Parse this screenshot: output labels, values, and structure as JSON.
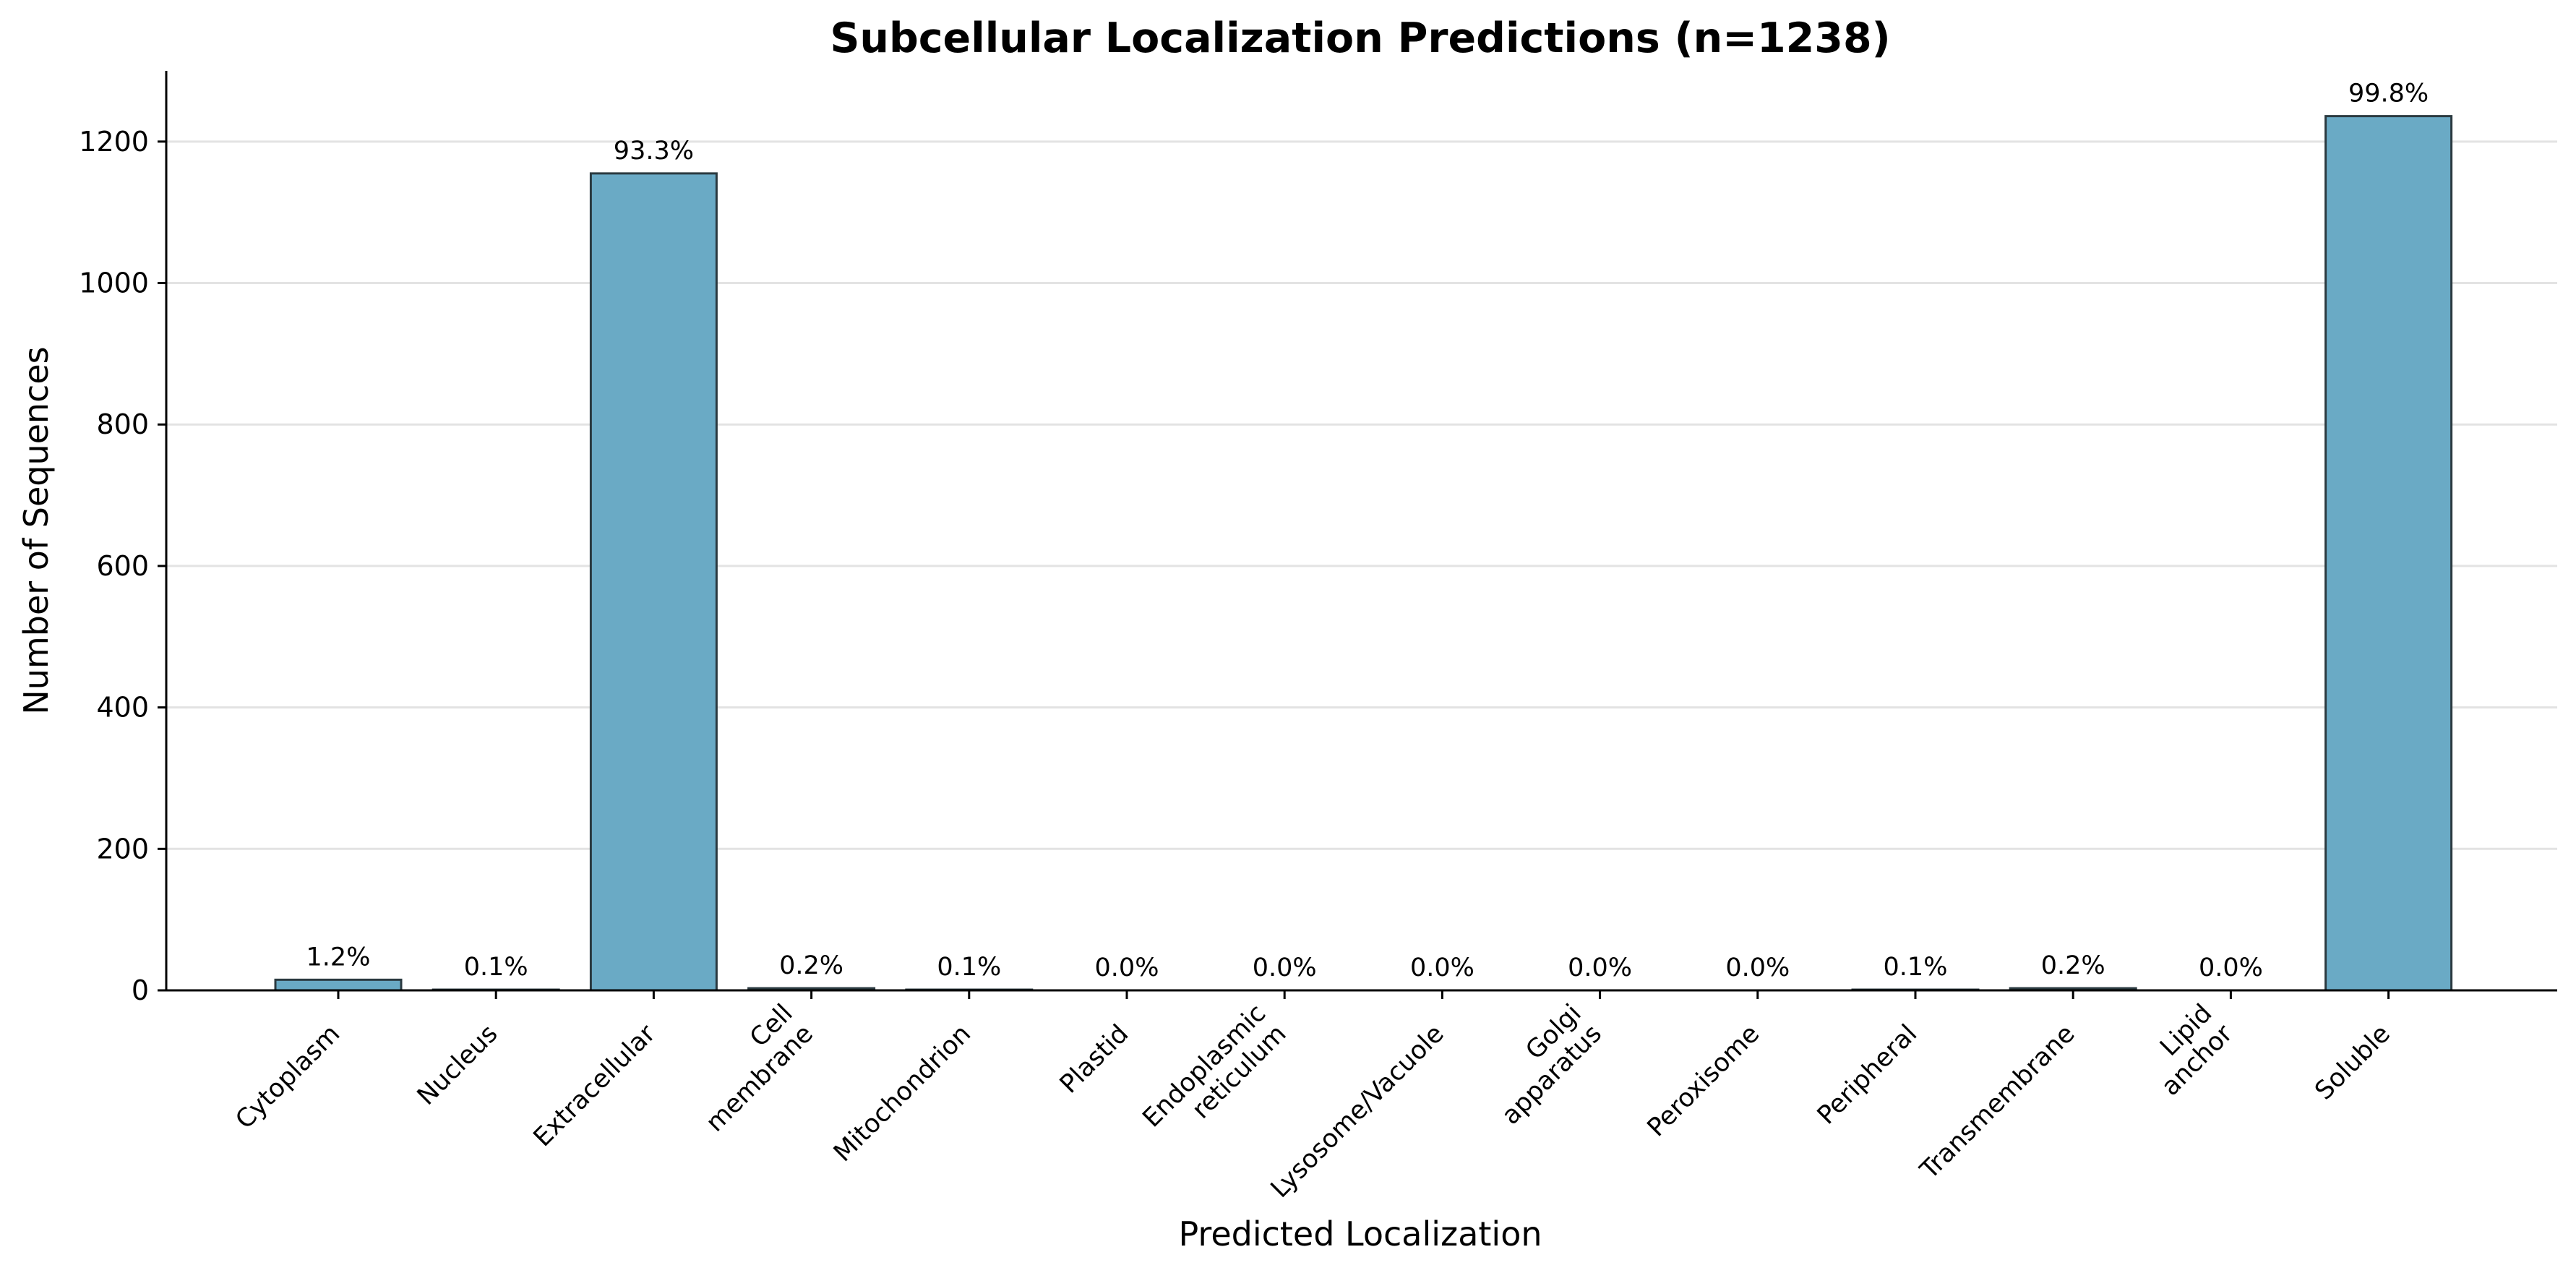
{
  "chart_data": {
    "type": "bar",
    "title": "Subcellular Localization Predictions (n=1238)",
    "xlabel": "Predicted Localization",
    "ylabel": "Number of Sequences",
    "ylim": [
      0,
      1300
    ],
    "yticks": [
      0,
      200,
      400,
      600,
      800,
      1000,
      1200
    ],
    "grid": "horizontal",
    "bar_color": "#6aaac5",
    "bar_edge_color": "#2b3a40",
    "categories": [
      [
        "Cytoplasm"
      ],
      [
        "Nucleus"
      ],
      [
        "Extracellular"
      ],
      [
        "Cell",
        "membrane"
      ],
      [
        "Mitochondrion"
      ],
      [
        "Plastid"
      ],
      [
        "Endoplasmic",
        "reticulum"
      ],
      [
        "Lysosome/Vacuole"
      ],
      [
        "Golgi",
        "apparatus"
      ],
      [
        "Peroxisome"
      ],
      [
        "Peripheral"
      ],
      [
        "Transmembrane"
      ],
      [
        "Lipid",
        "anchor"
      ],
      [
        "Soluble"
      ]
    ],
    "values": [
      15,
      1,
      1155,
      3,
      1,
      0,
      0,
      0,
      0,
      0,
      1,
      3,
      0,
      1236
    ],
    "data_labels": [
      "1.2%",
      "0.1%",
      "93.3%",
      "0.2%",
      "0.1%",
      "0.0%",
      "0.0%",
      "0.0%",
      "0.0%",
      "0.0%",
      "0.1%",
      "0.2%",
      "0.0%",
      "99.8%"
    ]
  }
}
